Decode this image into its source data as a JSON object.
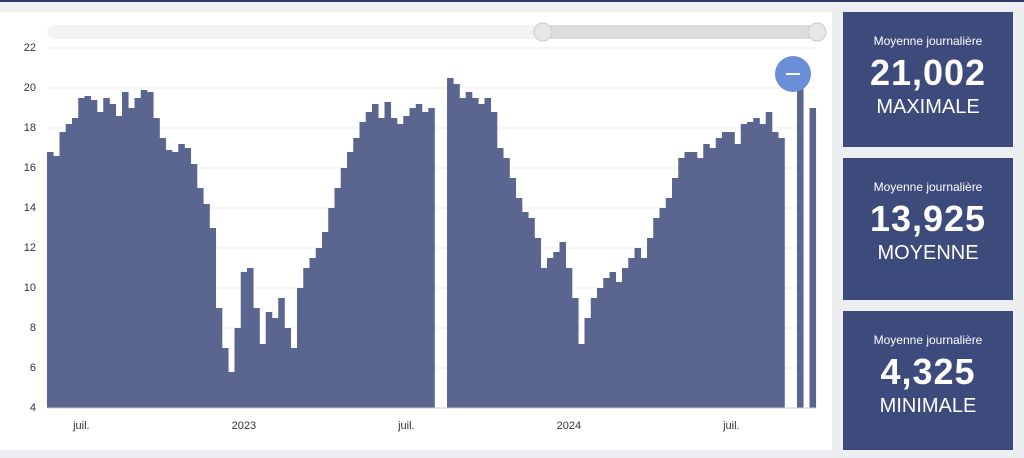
{
  "chart_data": {
    "type": "bar",
    "color": "#5a6690",
    "categories": [
      null,
      null,
      null,
      null,
      null,
      "juil.",
      null,
      null,
      null,
      null,
      null,
      null,
      null,
      null,
      null,
      null,
      null,
      null,
      null,
      null,
      null,
      null,
      null,
      null,
      null,
      null,
      null,
      null,
      null,
      null,
      null,
      "2023",
      null,
      null,
      null,
      null,
      null,
      null,
      null,
      null,
      null,
      null,
      null,
      null,
      null,
      null,
      null,
      null,
      null,
      null,
      null,
      null,
      null,
      null,
      null,
      null,
      null,
      "juil.",
      null,
      null,
      null,
      null,
      null,
      null,
      null,
      null,
      null,
      null,
      null,
      null,
      null,
      null,
      null,
      null,
      null,
      null,
      null,
      null,
      null,
      null,
      null,
      null,
      null,
      "2024",
      null,
      null,
      null,
      null,
      null,
      null,
      null,
      null,
      null,
      null,
      null,
      null,
      null,
      null,
      null,
      null,
      null,
      null,
      null,
      null,
      null,
      null,
      null,
      null,
      null,
      "juil.",
      null,
      null,
      null,
      null,
      null,
      null,
      null,
      null,
      null,
      null,
      null,
      null,
      null
    ],
    "values": [
      16.8,
      16.6,
      17.8,
      18.2,
      18.5,
      19.5,
      19.6,
      19.4,
      18.8,
      19.5,
      19.2,
      18.6,
      19.8,
      19,
      19.5,
      19.9,
      19.8,
      18.5,
      17.5,
      16.9,
      16.8,
      17.2,
      17,
      16.2,
      15,
      14.2,
      13,
      9,
      7,
      5.8,
      8,
      10.8,
      11,
      9,
      7.2,
      8.8,
      8.5,
      9.5,
      8,
      7,
      10,
      11,
      11.5,
      12,
      12.8,
      14,
      15,
      16,
      16.8,
      17.5,
      18.3,
      18.8,
      19.2,
      18.5,
      19.3,
      18.5,
      18.2,
      18.6,
      19,
      19.2,
      18.8,
      19,
      null,
      null,
      20.5,
      20.2,
      19.5,
      19.8,
      19.5,
      19.2,
      19.5,
      18.8,
      17,
      16.5,
      15.5,
      14.5,
      13.8,
      13.5,
      12.5,
      11,
      11.5,
      11.8,
      12.3,
      11,
      9.5,
      7.2,
      8.5,
      9.5,
      10,
      10.5,
      10.8,
      10.3,
      11,
      11.5,
      12,
      11.5,
      12.5,
      13.5,
      14,
      14.5,
      15.5,
      16.5,
      16.8,
      16.8,
      16.5,
      17.2,
      17,
      17.5,
      17.8,
      17.8,
      17.2,
      18.2,
      18.3,
      18.5,
      18.2,
      18.8,
      17.8,
      17.5,
      null,
      null,
      20,
      null,
      19
    ],
    "ylim": [
      4,
      22
    ],
    "yticks": [
      4,
      6,
      8,
      10,
      12,
      14,
      16,
      18,
      20,
      22
    ],
    "grid": true
  },
  "cards": [
    {
      "caption": "Moyenne journalière",
      "value": "21,002",
      "label": "MAXIMALE"
    },
    {
      "caption": "Moyenne journalière",
      "value": "13,925",
      "label": "MOYENNE"
    },
    {
      "caption": "Moyenne journalière",
      "value": "4,325",
      "label": "MINIMALE"
    }
  ]
}
